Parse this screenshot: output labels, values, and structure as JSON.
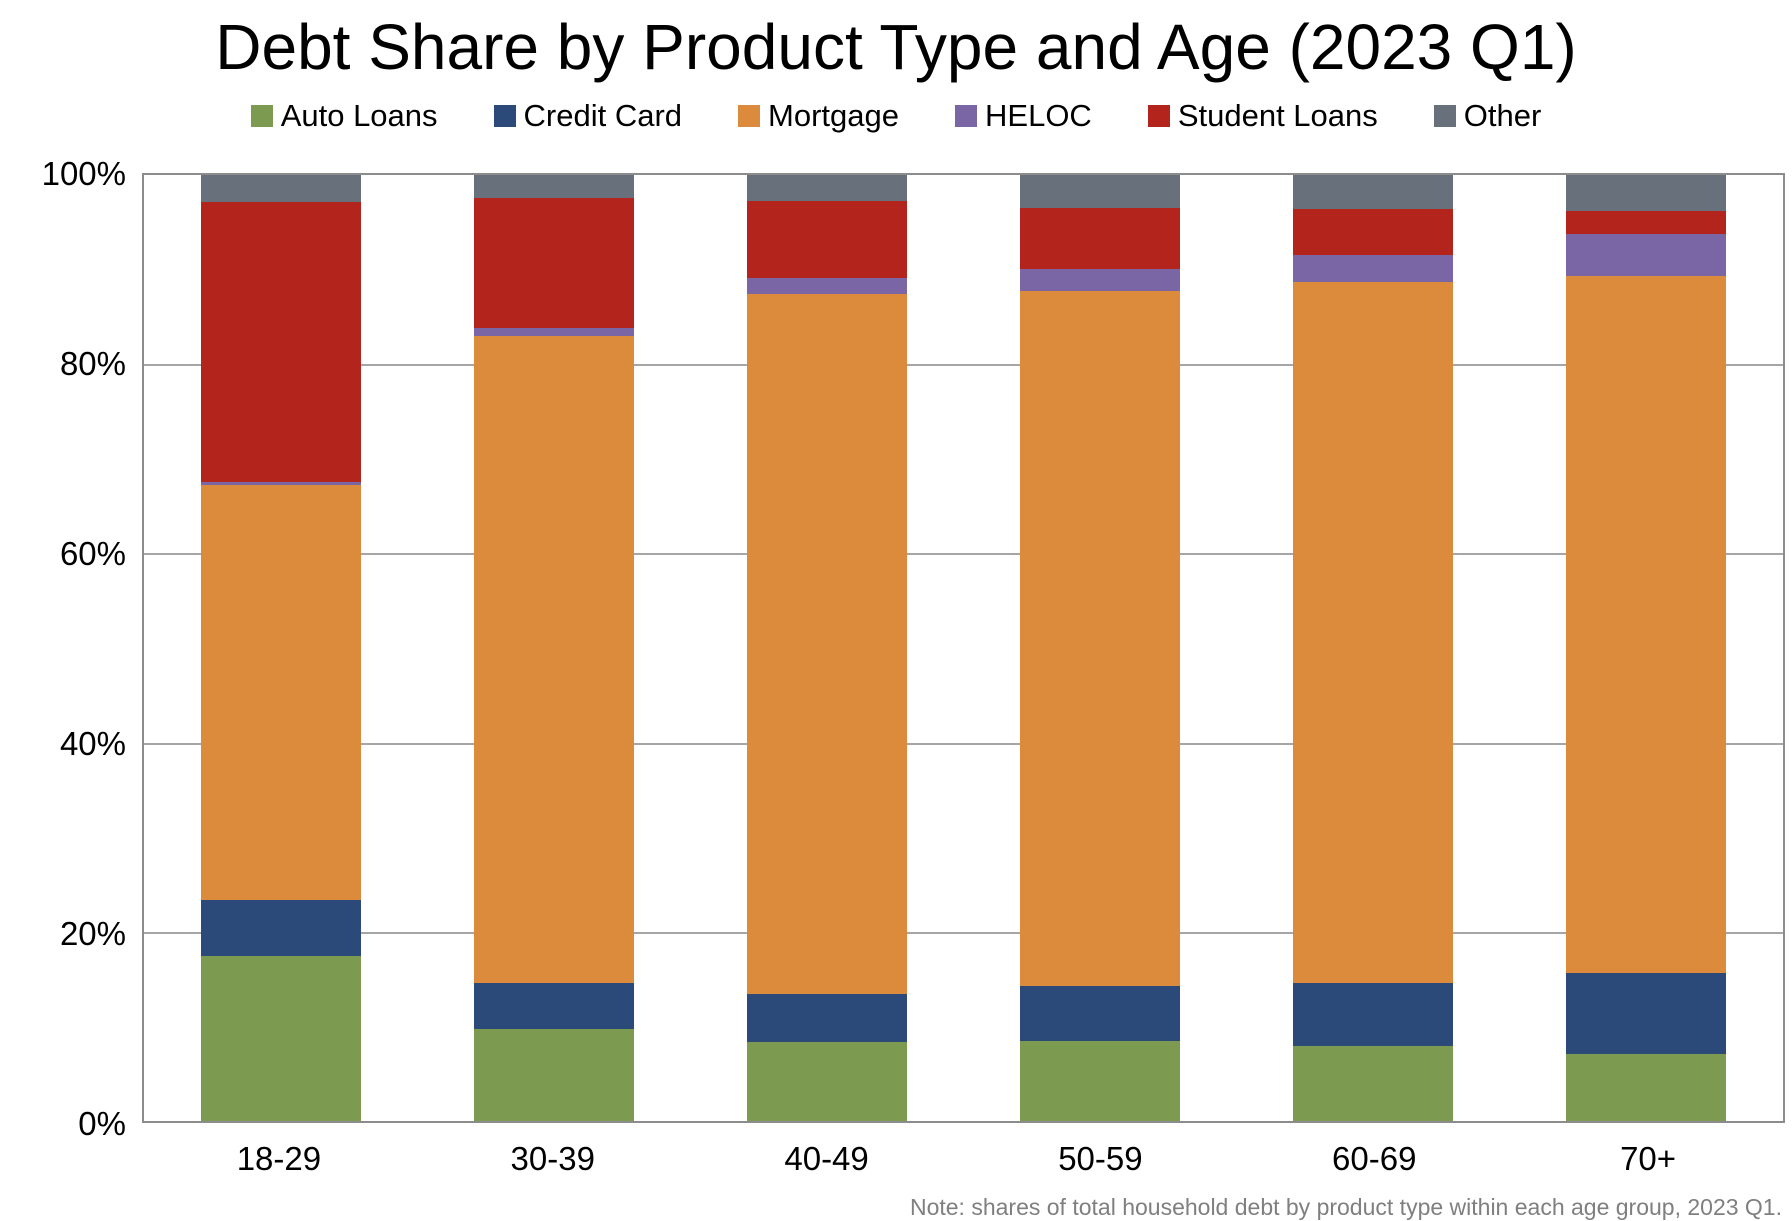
{
  "title": "Debt Share by Product Type and Age (2023 Q1)",
  "footnote": "Note: shares of total household debt by product type within each age group, 2023 Q1.",
  "y_axis": {
    "tick_labels": [
      "100%",
      "80%",
      "60%",
      "40%",
      "20%",
      "0%"
    ]
  },
  "colors": {
    "frame": "#8c8c8c",
    "gridline": "#a6a6a6",
    "background": "#ffffff"
  },
  "chart_data": {
    "type": "bar",
    "stacked": true,
    "percent_stacked": true,
    "title": "Debt Share by Product Type and Age (2023 Q1)",
    "categories": [
      "18-29",
      "30-39",
      "40-49",
      "50-59",
      "60-69",
      "70+"
    ],
    "series": [
      {
        "name": "Auto Loans",
        "color": "#7C9A50",
        "values": [
          17.4,
          9.7,
          8.4,
          8.5,
          7.9,
          7.1
        ]
      },
      {
        "name": "Credit Card",
        "color": "#2B4979",
        "values": [
          6.0,
          4.9,
          5.0,
          5.8,
          6.7,
          8.6
        ]
      },
      {
        "name": "Mortgage",
        "color": "#DC8A3B",
        "values": [
          43.8,
          68.4,
          74.0,
          73.4,
          74.1,
          73.6
        ]
      },
      {
        "name": "HELOC",
        "color": "#7A66A5",
        "values": [
          0.4,
          0.8,
          1.7,
          2.4,
          2.9,
          4.5
        ]
      },
      {
        "name": "Student Loans",
        "color": "#B2241C",
        "values": [
          29.5,
          13.8,
          8.2,
          6.4,
          4.8,
          2.4
        ]
      },
      {
        "name": "Other",
        "color": "#68717B",
        "values": [
          2.9,
          2.4,
          2.7,
          3.5,
          3.6,
          3.8
        ]
      }
    ],
    "xlabel": "",
    "ylabel": "",
    "ylim": [
      0,
      100
    ],
    "yticks": [
      0,
      20,
      40,
      60,
      80,
      100
    ],
    "grid": "horizontal",
    "legend_position": "top"
  }
}
